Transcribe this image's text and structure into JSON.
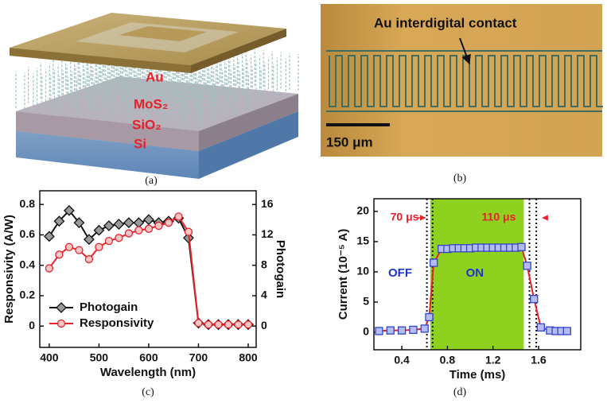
{
  "panel_labels": [
    "(a)",
    "(b)",
    "(c)",
    "(d)"
  ],
  "schematic": {
    "layers": [
      "Au",
      "MoS₂",
      "SiO₂",
      "Si"
    ]
  },
  "micrograph": {
    "annotation": "Au interdigital contact",
    "scale_bar": "150 μm"
  },
  "chart_data": [
    {
      "type": "line",
      "x": [
        400,
        420,
        440,
        460,
        480,
        500,
        520,
        540,
        560,
        580,
        600,
        620,
        640,
        660,
        680,
        700,
        720,
        740,
        760,
        780,
        800
      ],
      "xlabel": "Wavelength (nm)",
      "ylabel": "Responsivity (A/W)",
      "y2label": "Photogain",
      "xlim": [
        381,
        816
      ],
      "xticks": [
        400,
        500,
        600,
        700,
        800
      ],
      "ylim": [
        -0.14,
        0.89
      ],
      "yticks": [
        0,
        0.2,
        0.4,
        0.6,
        0.8
      ],
      "y2lim": [
        -2.8,
        17.8
      ],
      "y2ticks": [
        0,
        4,
        8,
        12,
        16
      ],
      "legend": "lower left",
      "series": [
        {
          "name": "Photogain",
          "color": "#111111",
          "marker": "diamond",
          "marker_fill": "#9a9a9a",
          "axis": "y2",
          "values": [
            11.8,
            13.8,
            15.2,
            13.6,
            11.4,
            12.6,
            13.2,
            13.4,
            13.6,
            13.6,
            14,
            13.6,
            13.8,
            14.2,
            11.6,
            0.4,
            0.2,
            0.2,
            0.2,
            0.2,
            0.2
          ]
        },
        {
          "name": "Responsivity",
          "color": "#e8202a",
          "marker": "circle",
          "marker_fill": "#f9c6c6",
          "values": [
            0.38,
            0.47,
            0.52,
            0.5,
            0.44,
            0.52,
            0.56,
            0.58,
            0.61,
            0.63,
            0.64,
            0.66,
            0.68,
            0.72,
            0.62,
            0.02,
            0.01,
            0.01,
            0.01,
            0.01,
            0.01
          ]
        }
      ]
    },
    {
      "type": "line",
      "x": [
        0.2,
        0.3,
        0.4,
        0.5,
        0.6,
        0.64,
        0.68,
        0.75,
        0.8,
        0.85,
        0.9,
        0.95,
        1.0,
        1.05,
        1.1,
        1.15,
        1.2,
        1.25,
        1.3,
        1.35,
        1.4,
        1.45,
        1.5,
        1.56,
        1.62,
        1.7,
        1.75,
        1.8,
        1.85
      ],
      "xlabel": "Time (ms)",
      "ylabel": "Current (10⁻⁵ A)",
      "xlim": [
        0.155,
        1.97
      ],
      "xticks": [
        0.4,
        0.8,
        1.2,
        1.6
      ],
      "ylim": [
        -2.9,
        22.1
      ],
      "yticks": [
        0,
        5,
        10,
        15,
        20
      ],
      "shaded_region": [
        0.65,
        1.47
      ],
      "shade_color": "#8fd11f",
      "vlines": [
        0.62,
        0.67,
        1.52,
        1.58
      ],
      "annotations": [
        "70 μs",
        "110 μs",
        "OFF",
        "ON"
      ],
      "series": [
        {
          "color": "#e8202a",
          "marker": "square",
          "marker_fill": "#b4bcf2",
          "marker_edge": "#3344cc",
          "values": [
            0.2,
            0.3,
            0.3,
            0.4,
            0.6,
            2.5,
            11.5,
            13.8,
            13.8,
            13.9,
            13.9,
            13.9,
            13.9,
            14,
            14,
            14,
            14,
            14,
            14,
            14,
            14,
            14.1,
            11,
            5.5,
            0.8,
            0.3,
            0.2,
            0.2,
            0.2
          ]
        }
      ]
    }
  ]
}
